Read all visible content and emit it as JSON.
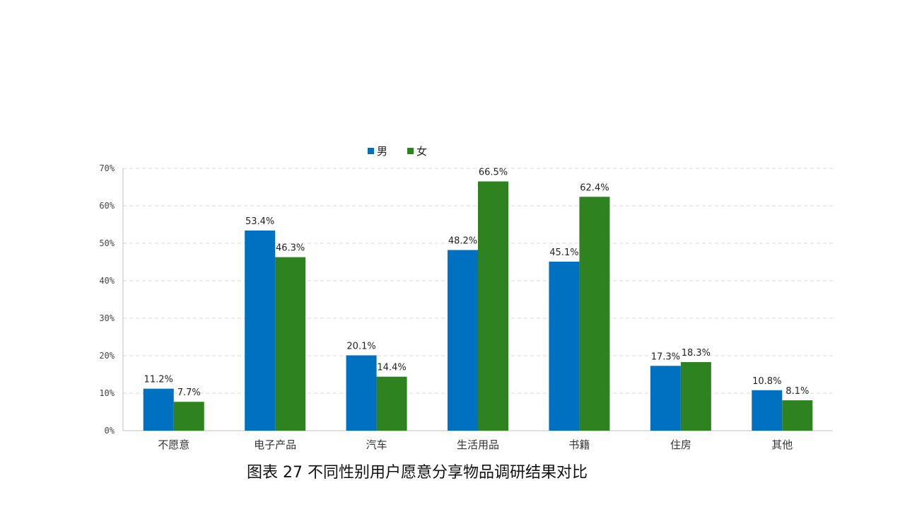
{
  "caption": "图表 27  不同性别用户愿意分享物品调研结果对比",
  "colors": {
    "male": "#0070C0",
    "female": "#2E8320",
    "grid": "#D9D9D9",
    "axis": "#BFBFBF",
    "text": "#222222"
  },
  "chart_data": {
    "type": "bar",
    "title": "",
    "xlabel": "",
    "ylabel": "",
    "ylim": [
      0,
      70
    ],
    "yticks": [
      "0%",
      "10%",
      "20%",
      "30%",
      "40%",
      "50%",
      "60%",
      "70%"
    ],
    "grid": true,
    "legend": "top-center",
    "categories": [
      "不愿意",
      "电子产品",
      "汽车",
      "生活用品",
      "书籍",
      "住房",
      "其他"
    ],
    "series": [
      {
        "name": "男",
        "values": [
          11.2,
          53.4,
          20.1,
          48.2,
          45.1,
          17.3,
          10.8
        ],
        "labels": [
          "11.2%",
          "53.4%",
          "20.1%",
          "48.2%",
          "45.1%",
          "17.3%",
          "10.8%"
        ]
      },
      {
        "name": "女",
        "values": [
          7.7,
          46.3,
          14.4,
          66.5,
          62.4,
          18.3,
          8.1
        ],
        "labels": [
          "7.7%",
          "46.3%",
          "14.4%",
          "66.5%",
          "62.4%",
          "18.3%",
          "8.1%"
        ]
      }
    ]
  }
}
